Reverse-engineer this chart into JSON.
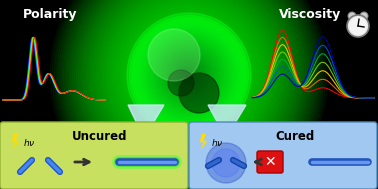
{
  "title_polarity": "Polarity",
  "title_viscosity": "Viscosity",
  "title_uncured": "Uncured",
  "title_cured": "Cured",
  "bg_color": "#000000",
  "polarity_colors": [
    "#0000ff",
    "#00aaff",
    "#00ff88",
    "#aaff00",
    "#ffaa00",
    "#ff0000"
  ],
  "viscosity_colors": [
    "#ff0000",
    "#ff6600",
    "#ffcc00",
    "#88cc00",
    "#00aa44",
    "#0055cc",
    "#0000aa"
  ],
  "uncured_box_color": "#c8e060",
  "cured_box_color": "#a0c8f0",
  "title_fontsize": 9,
  "clock_r": 11
}
